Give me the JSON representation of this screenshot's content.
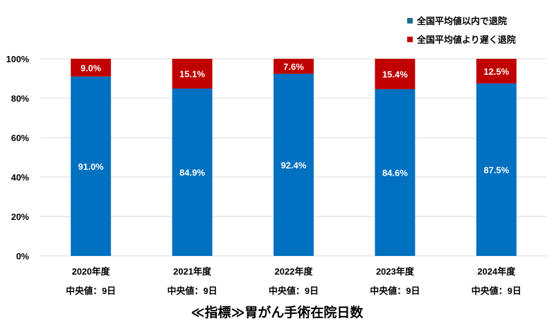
{
  "chart_data": {
    "type": "bar",
    "stacked": true,
    "title": "≪指標≫胃がん手術在院日数",
    "xlabel": "",
    "ylabel": "",
    "ylim": [
      0,
      100
    ],
    "yticks": [
      "0%",
      "20%",
      "40%",
      "60%",
      "80%",
      "100%"
    ],
    "grid": true,
    "legend_position": "top-right",
    "categories": [
      "2020年度",
      "2021年度",
      "2022年度",
      "2023年度",
      "2024年度"
    ],
    "sublabels": [
      "中央値：9日",
      "中央値：9日",
      "中央値：9日",
      "中央値：9日",
      "中央値：9日"
    ],
    "series": [
      {
        "name": "全国平均値以内で退院",
        "color": "#0070c0",
        "legend_color": "#1f6b8e",
        "values": [
          91.0,
          84.9,
          92.4,
          84.6,
          87.5
        ],
        "labels": [
          "91.0%",
          "84.9%",
          "92.4%",
          "84.6%",
          "87.5%"
        ]
      },
      {
        "name": "全国平均値より遅く退院",
        "color": "#c00000",
        "legend_color": "#c00000",
        "values": [
          9.0,
          15.1,
          7.6,
          15.4,
          12.5
        ],
        "labels": [
          "9.0%",
          "15.1%",
          "7.6%",
          "15.4%",
          "12.5%"
        ]
      }
    ]
  }
}
